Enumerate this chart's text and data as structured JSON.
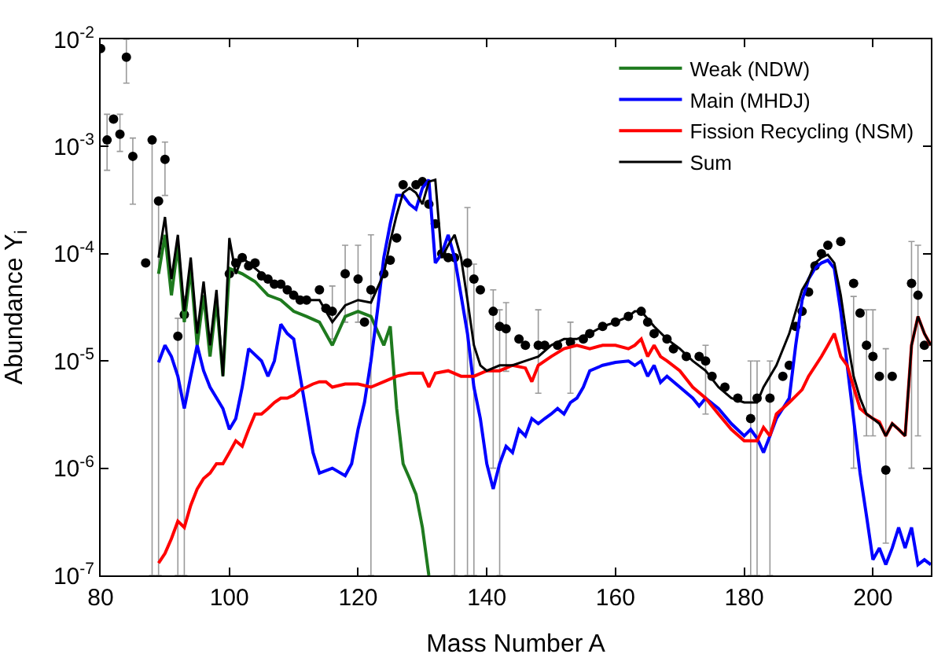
{
  "chart_data": {
    "type": "line",
    "xlabel": "Mass Number A",
    "ylabel": "Abundance Y$_{i}$",
    "log": "y",
    "xlim": [
      80,
      209
    ],
    "xticks": [
      80,
      100,
      120,
      140,
      160,
      180,
      200
    ],
    "ylim": [
      1e-07,
      0.01
    ],
    "yticks": [
      {
        "value": 1e-07,
        "label": "10$^{-7}$"
      },
      {
        "value": 1e-06,
        "label": "10$^{-6}$"
      },
      {
        "value": 1e-05,
        "label": "10$^{-5}$"
      },
      {
        "value": 0.0001,
        "label": "10$^{-4}$"
      },
      {
        "value": 0.001,
        "label": "10$^{-3}$"
      },
      {
        "value": 0.01,
        "label": "10$^{-2}$"
      }
    ],
    "legend": "top right",
    "marker": "none",
    "line_style": "solid",
    "series": [
      {
        "type": "scatter",
        "color": "#000000",
        "marker": "circle",
        "x": [
          80,
          81,
          82,
          83,
          84,
          85,
          87,
          88,
          89,
          90,
          92,
          93,
          100,
          101,
          102,
          103,
          104,
          105,
          106,
          107,
          108,
          109,
          110,
          111,
          112,
          114,
          115,
          116,
          118,
          120,
          121,
          122,
          124,
          125,
          126,
          127,
          129,
          130,
          131,
          132,
          133,
          134,
          135,
          137,
          138,
          139,
          141,
          142,
          143,
          145,
          146,
          148,
          149,
          151,
          153,
          155,
          156,
          158,
          160,
          162,
          164,
          165,
          166,
          168,
          169,
          171,
          173,
          174,
          175,
          177,
          179,
          181,
          182,
          184,
          186,
          187,
          188,
          189,
          190,
          191,
          192,
          193,
          195,
          197,
          198,
          199,
          200,
          201,
          202,
          203,
          206,
          207,
          208
        ],
        "values": [
          0.0082,
          0.00115,
          0.0018,
          0.0013,
          0.0068,
          0.00081,
          8.2e-05,
          0.00115,
          0.00031,
          0.00076,
          1.7e-05,
          2.7e-05,
          6.5e-05,
          8.2e-05,
          9.2e-05,
          7.7e-05,
          8.2e-05,
          6.2e-05,
          5.8e-05,
          5.2e-05,
          5.2e-05,
          4.6e-05,
          4.1e-05,
          3.7e-05,
          3.7e-05,
          4.6e-05,
          3.1e-05,
          2.9e-05,
          6.5e-05,
          5.8e-05,
          2.3e-05,
          4.6e-05,
          6.5e-05,
          8.7e-05,
          0.00014,
          0.00044,
          0.00044,
          0.00047,
          0.00029,
          0.00019,
          0.0001,
          9.2e-05,
          9.2e-05,
          8.2e-05,
          5.8e-05,
          4.6e-05,
          2.9e-05,
          2.1e-05,
          2e-05,
          1.6e-05,
          1.4e-05,
          1.4e-05,
          1.4e-05,
          1.4e-05,
          1.5e-05,
          1.6e-05,
          1.8e-05,
          2.1e-05,
          2.3e-05,
          2.6e-05,
          2.9e-05,
          2.3e-05,
          1.8e-05,
          1.6e-05,
          1.3e-05,
          1.1e-05,
          1.1e-05,
          1e-05,
          7.2e-06,
          5.7e-06,
          4.5e-06,
          2.9e-06,
          4.5e-06,
          4.5e-06,
          7.2e-06,
          9.1e-06,
          2.1e-05,
          2.9e-05,
          4.4e-05,
          7.7e-05,
          0.0001,
          0.00012,
          0.00013,
          5.3e-05,
          2.8e-05,
          1.4e-05,
          1.1e-05,
          7.2e-06,
          9.6e-07,
          7.2e-06,
          5.3e-05,
          4.1e-05,
          1.4e-05
        ],
        "errors": [
          null,
          [
            0.0006,
            0.002
          ],
          null,
          [
            0.0009,
            0.002
          ],
          [
            0.0039,
            0.01
          ],
          [
            0.00029,
            0.0012
          ],
          null,
          [
            1e-07,
            0.00115
          ],
          [
            1e-07,
            0.00031
          ],
          [
            0.00035,
            0.0011
          ],
          [
            1e-07,
            2.5e-05
          ],
          [
            1e-07,
            4e-05
          ],
          null,
          null,
          null,
          null,
          null,
          null,
          null,
          null,
          null,
          null,
          null,
          null,
          null,
          null,
          null,
          [
            1.6e-05,
            5e-05
          ],
          [
            2.3e-05,
            0.00012
          ],
          [
            2.3e-05,
            0.00012
          ],
          null,
          [
            1e-07,
            0.00015
          ],
          null,
          null,
          null,
          null,
          null,
          null,
          null,
          null,
          null,
          null,
          [
            1e-07,
            9.2e-05
          ],
          [
            1e-07,
            0.00027
          ],
          [
            1e-07,
            8e-05
          ],
          null,
          [
            1e-06,
            4.6e-05
          ],
          [
            1e-07,
            3e-05
          ],
          [
            8e-06,
            3.5e-05
          ],
          null,
          null,
          [
            5e-06,
            3e-05
          ],
          null,
          null,
          [
            5e-06,
            2.3e-05
          ],
          null,
          null,
          null,
          null,
          null,
          null,
          null,
          null,
          null,
          null,
          null,
          null,
          [
            3.2e-06,
            1.4e-05
          ],
          null,
          null,
          null,
          [
            1e-07,
            1e-05
          ],
          [
            1e-07,
            1e-05
          ],
          [
            1e-07,
            1e-05
          ],
          null,
          null,
          null,
          null,
          null,
          null,
          null,
          null,
          null,
          [
            1e-06,
            4e-05
          ],
          null,
          [
            2e-06,
            3e-05
          ],
          [
            2e-06,
            3e-05
          ],
          null,
          [
            2e-07,
            1.3e-05
          ],
          null,
          [
            1e-06,
            0.00013
          ],
          [
            2e-06,
            0.00012
          ],
          null
        ]
      },
      {
        "name": "Weak (NDW)",
        "color": "#1e7a1e",
        "x": [
          89,
          90,
          91,
          92,
          93,
          94,
          95,
          96,
          97,
          98,
          99,
          100,
          102,
          104,
          106,
          108,
          110,
          112,
          114,
          116,
          118,
          120,
          122,
          124,
          125,
          126,
          127,
          128,
          129,
          130,
          131
        ],
        "values": [
          6.5e-05,
          0.00015,
          4.1e-05,
          0.00012,
          2.3e-05,
          7.3e-05,
          1.4e-05,
          4.1e-05,
          1.1e-05,
          3.7e-05,
          7.2e-06,
          7.3e-05,
          6.5e-05,
          5.5e-05,
          4.1e-05,
          3.7e-05,
          2.9e-05,
          2.6e-05,
          2.3e-05,
          1.4e-05,
          2.6e-05,
          2.9e-05,
          2.6e-05,
          1.4e-05,
          2.1e-05,
          3.6e-06,
          1.1e-06,
          8e-07,
          5.7e-07,
          2.8e-07,
          1e-07
        ]
      },
      {
        "name": "Main (MHDJ)",
        "color": "#0000ff",
        "x": [
          89,
          90,
          91,
          92,
          93,
          94,
          95,
          96,
          97,
          99,
          100,
          101,
          102,
          103,
          105,
          106,
          107,
          108,
          109,
          110,
          111,
          112,
          113,
          114,
          116,
          118,
          119,
          120,
          121,
          122,
          123,
          124,
          125,
          126,
          127,
          128,
          129,
          130,
          131,
          132,
          133,
          134,
          135,
          136,
          137,
          138,
          139,
          140,
          141,
          142,
          143,
          144,
          145,
          146,
          147,
          148,
          149,
          150,
          151,
          152,
          153,
          154,
          155,
          156,
          158,
          160,
          162,
          163,
          164,
          165,
          166,
          167,
          168,
          170,
          172,
          173,
          174,
          176,
          178,
          180,
          181,
          182,
          183,
          184,
          185,
          186,
          187,
          188,
          189,
          190,
          191,
          192,
          193,
          194,
          195,
          196,
          197,
          198,
          199,
          200,
          201,
          202,
          203,
          204,
          205,
          206,
          207,
          208,
          209
        ],
        "values": [
          9.7e-06,
          1.4e-05,
          1.1e-05,
          7.2e-06,
          3.6e-06,
          7.2e-06,
          1.4e-05,
          8.1e-06,
          5.7e-06,
          3.6e-06,
          2.3e-06,
          2.9e-06,
          5.7e-06,
          1.3e-05,
          1e-05,
          7.2e-06,
          1e-05,
          2.2e-05,
          1.8e-05,
          1.6e-05,
          7.2e-06,
          3.2e-06,
          1.4e-06,
          9e-07,
          1e-06,
          8.5e-07,
          1.1e-06,
          2.3e-06,
          4.1e-06,
          1e-05,
          2.9e-05,
          9.2e-05,
          0.00019,
          0.00035,
          0.00035,
          0.00029,
          0.00026,
          0.00041,
          0.00049,
          8.2e-05,
          0.0001,
          0.00015,
          9.2e-05,
          4.1e-05,
          1.8e-05,
          5.7e-06,
          2.9e-06,
          1.1e-06,
          6.4e-07,
          1.1e-06,
          1.6e-06,
          1.4e-06,
          2.3e-06,
          2e-06,
          2.9e-06,
          2.6e-06,
          2.9e-06,
          3.2e-06,
          3.6e-06,
          3.2e-06,
          4.1e-06,
          4.5e-06,
          5.7e-06,
          8.1e-06,
          9.1e-06,
          9.7e-06,
          1e-05,
          9.1e-06,
          1e-05,
          7.2e-06,
          9.1e-06,
          6.3e-06,
          7.2e-06,
          5.7e-06,
          4.5e-06,
          3.8e-06,
          4.5e-06,
          3.6e-06,
          2.6e-06,
          2e-06,
          2.3e-06,
          1.9e-06,
          1.4e-06,
          2e-06,
          2.9e-06,
          3.6e-06,
          4.5e-06,
          1.4e-05,
          3.7e-05,
          5.8e-05,
          7.3e-05,
          8.2e-05,
          8.7e-05,
          7.3e-05,
          2.9e-05,
          9.1e-06,
          2.9e-06,
          9e-07,
          3.6e-07,
          1.4e-07,
          1.8e-07,
          1.26e-07,
          1.8e-07,
          2.8e-07,
          1.8e-07,
          2.8e-07,
          1.26e-07,
          1.4e-07,
          1.26e-07
        ]
      },
      {
        "name": "Fission Recycling (NSM)",
        "color": "#ff0000",
        "x": [
          89,
          90,
          91,
          92,
          93,
          94,
          95,
          96,
          97,
          98,
          99,
          100,
          101,
          102,
          103,
          104,
          105,
          106,
          107,
          108,
          109,
          110,
          111,
          112,
          113,
          114,
          115,
          116,
          118,
          120,
          122,
          124,
          126,
          128,
          130,
          131,
          132,
          134,
          136,
          138,
          140,
          142,
          144,
          146,
          147,
          148,
          150,
          152,
          154,
          156,
          158,
          160,
          162,
          163,
          164,
          165,
          166,
          167,
          168,
          170,
          172,
          174,
          176,
          178,
          180,
          182,
          183,
          184,
          185,
          187,
          189,
          190,
          192,
          193,
          194,
          195,
          196,
          197,
          198,
          199,
          200,
          201,
          202,
          203,
          204,
          205,
          206,
          207,
          208,
          209
        ],
        "values": [
          1.3e-07,
          1.6e-07,
          2.2e-07,
          3.2e-07,
          2.8e-07,
          4.5e-07,
          6.4e-07,
          8e-07,
          9e-07,
          1.1e-06,
          1.1e-06,
          1.4e-06,
          1.8e-06,
          1.6e-06,
          2.3e-06,
          3.2e-06,
          3.2e-06,
          3.6e-06,
          4.1e-06,
          4.5e-06,
          4.5e-06,
          4.8e-06,
          5.4e-06,
          5.7e-06,
          6.1e-06,
          6.4e-06,
          6.4e-06,
          5.7e-06,
          6.1e-06,
          6.1e-06,
          5.7e-06,
          6.4e-06,
          7.2e-06,
          7.7e-06,
          7.7e-06,
          5.7e-06,
          7.7e-06,
          8.1e-06,
          7.2e-06,
          7.2e-06,
          8.1e-06,
          8.1e-06,
          9.1e-06,
          8.6e-06,
          6.4e-06,
          9.1e-06,
          1.1e-05,
          1.3e-05,
          1.4e-05,
          1.3e-05,
          1.4e-05,
          1.4e-05,
          1.3e-05,
          1.4e-05,
          1.6e-05,
          1.1e-05,
          1.4e-05,
          1.1e-05,
          1e-05,
          8.1e-06,
          5.7e-06,
          4.5e-06,
          3.2e-06,
          2.3e-06,
          1.8e-06,
          1.8e-06,
          2.4e-06,
          2e-06,
          3.2e-06,
          4.1e-06,
          5.4e-06,
          7.2e-06,
          1.1e-05,
          1.4e-05,
          1.8e-05,
          1.1e-05,
          9.1e-06,
          5.7e-06,
          3.6e-06,
          3.2e-06,
          2.9e-06,
          2.7e-06,
          2e-06,
          2.6e-06,
          2.3e-06,
          2e-06,
          1.4e-05,
          2.6e-05,
          1.8e-05,
          1.4e-05
        ]
      },
      {
        "name": "Sum",
        "color": "#000000",
        "x": [
          89,
          90,
          91,
          92,
          93,
          94,
          95,
          96,
          97,
          98,
          99,
          100,
          101,
          102,
          103,
          104,
          106,
          108,
          110,
          112,
          114,
          116,
          118,
          120,
          122,
          124,
          125,
          126,
          127,
          128,
          129,
          130,
          131,
          132,
          133,
          134,
          135,
          136,
          137,
          138,
          139,
          140,
          142,
          144,
          146,
          148,
          150,
          152,
          154,
          156,
          158,
          160,
          162,
          163,
          164,
          166,
          168,
          170,
          172,
          174,
          176,
          178,
          180,
          182,
          183,
          185,
          187,
          188,
          189,
          190,
          191,
          192,
          193,
          194,
          195,
          196,
          197,
          198,
          199,
          200,
          201,
          202,
          203,
          204,
          205,
          206,
          207,
          208,
          209
        ],
        "values": [
          9.2e-05,
          0.00022,
          5.8e-05,
          0.00015,
          2.9e-05,
          9.2e-05,
          1.8e-05,
          5.5e-05,
          1.4e-05,
          4.6e-05,
          7.2e-06,
          0.00014,
          6.5e-05,
          9.2e-05,
          8.2e-05,
          7.3e-05,
          5.8e-05,
          5.2e-05,
          4.1e-05,
          3.7e-05,
          3.7e-05,
          2.3e-05,
          3.3e-05,
          3.7e-05,
          3.5e-05,
          6.5e-05,
          0.00013,
          0.00023,
          0.00037,
          0.00041,
          0.00037,
          0.00029,
          0.00047,
          0.00049,
          9.2e-05,
          0.00012,
          0.00015,
          9.2e-05,
          3.7e-05,
          1.4e-05,
          9.1e-06,
          8.1e-06,
          9.1e-06,
          9.1e-06,
          1e-05,
          1.1e-05,
          1.4e-05,
          1.6e-05,
          1.6e-05,
          1.8e-05,
          2.1e-05,
          2.3e-05,
          2.6e-05,
          2.9e-05,
          2.9e-05,
          2.1e-05,
          1.6e-05,
          1.3e-05,
          1e-05,
          8.1e-06,
          5.7e-06,
          4.5e-06,
          4.1e-06,
          4.1e-06,
          5.7e-06,
          9.1e-06,
          1.8e-05,
          2.9e-05,
          4.6e-05,
          5.8e-05,
          8.2e-05,
          9.2e-05,
          9.8e-05,
          8.2e-05,
          4.1e-05,
          1.6e-05,
          7.2e-06,
          4.5e-06,
          3.2e-06,
          2.9e-06,
          2.6e-06,
          2e-06,
          2.6e-06,
          2.3e-06,
          2e-06,
          1.4e-05,
          2.6e-05,
          1.8e-05,
          1.4e-05
        ]
      }
    ]
  }
}
